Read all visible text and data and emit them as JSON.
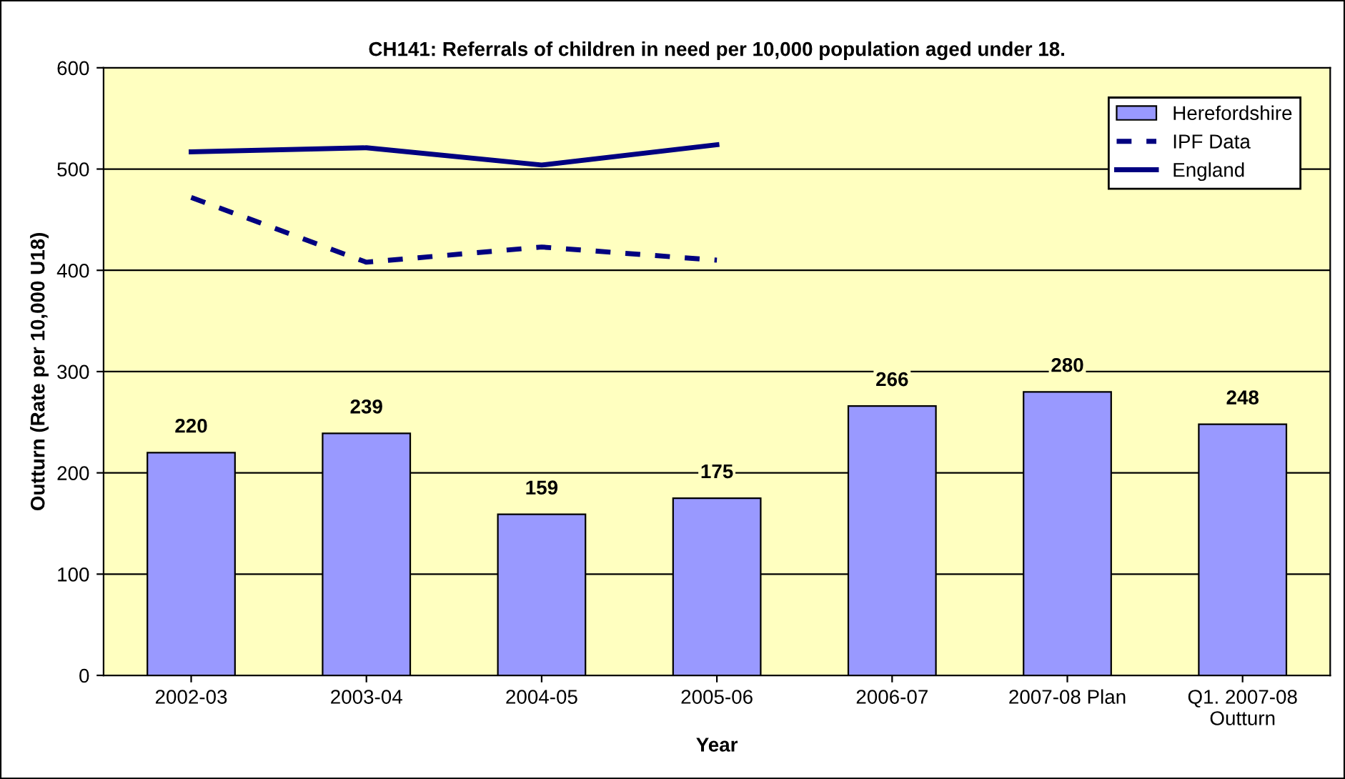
{
  "chart_data": {
    "type": "bar",
    "title": "CH141: Referrals of children in need per 10,000 population aged under 18.",
    "xlabel": "Year",
    "ylabel": "Outturn (Rate per 10,000 U18)",
    "categories": [
      "2002-03",
      "2003-04",
      "2004-05",
      "2005-06",
      "2006-07",
      "2007-08 Plan",
      "Q1. 2007-08\nOutturn"
    ],
    "series": [
      {
        "name": "Herefordshire",
        "color": "#9999ff",
        "values": [
          220,
          239,
          159,
          175,
          266,
          280,
          248
        ],
        "value_labels": [
          "220",
          "239",
          "159",
          "175",
          "266",
          "280",
          "248"
        ]
      },
      {
        "name": "IPF Data",
        "type": "line",
        "line_style": "dashed",
        "color": "#000080",
        "values": [
          472,
          408,
          423,
          410,
          null,
          null,
          null
        ]
      },
      {
        "name": "England",
        "type": "line",
        "line_style": "solid",
        "color": "#000080",
        "values": [
          517,
          521,
          504,
          524,
          null,
          null,
          null
        ]
      }
    ],
    "ylim": [
      0,
      600
    ],
    "yticks": [
      0,
      100,
      200,
      300,
      400,
      500,
      600
    ],
    "grid": "y",
    "legend": "upper right",
    "marker": "none"
  }
}
